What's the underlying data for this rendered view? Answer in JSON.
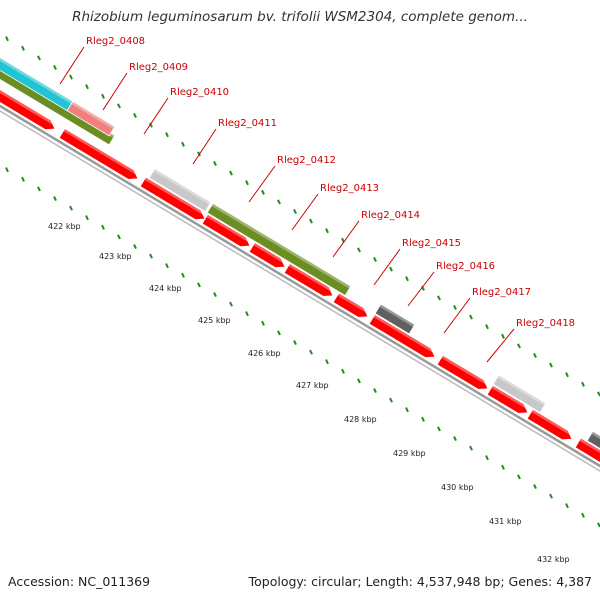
{
  "title": "Rhizobium leguminosarum bv. trifolii WSM2304, complete genom...",
  "footer": {
    "accession": "Accession: NC_011369",
    "summary": "Topology: circular; Length: 4,537,948 bp; Genes: 4,387"
  },
  "colors": {
    "forward_cds": "#ff0000",
    "olive_feature": "#6b8e23",
    "cyan_feature": "#22c4d4",
    "pink_feature": "#f08080",
    "light_gray_feature": "#c8c8c8",
    "dark_gray_feature": "#606060",
    "backbone": "#999999",
    "ticks": "#228b22",
    "label_text": "#cc0000"
  },
  "gene_labels": [
    "Rleg2_0408",
    "Rleg2_0409",
    "Rleg2_0410",
    "Rleg2_0411",
    "Rleg2_0412",
    "Rleg2_0413",
    "Rleg2_0414",
    "Rleg2_0415",
    "Rleg2_0416",
    "Rleg2_0417",
    "Rleg2_0418"
  ],
  "kbp_labels": [
    "422 kbp",
    "423 kbp",
    "424 kbp",
    "425 kbp",
    "426 kbp",
    "427 kbp",
    "428 kbp",
    "429 kbp",
    "430 kbp",
    "431 kbp",
    "432 kbp"
  ]
}
